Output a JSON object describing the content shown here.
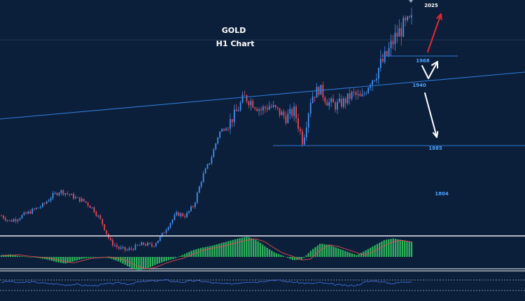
{
  "colors": {
    "background": "#0c1f3a",
    "candle_up": "#3f8ff0",
    "candle_down": "#e5464f",
    "level_line": "#2e78d6",
    "level_label": "#4aa3ff",
    "macd_histogram": "#2db35c",
    "macd_signal": "#e5464f",
    "rsi_line": "#3a6fd8",
    "arrow_bull": "#e5262f",
    "arrow_bear": "#ffffff",
    "separator": "#c9cfd8"
  },
  "chart_data": {
    "type": "candlestick",
    "title": "GOLD",
    "subtitle": "H1 Chart",
    "levels": [
      {
        "label": "2025",
        "value": 2025,
        "kind": "target"
      },
      {
        "label": "1968",
        "value": 1968,
        "kind": "support"
      },
      {
        "label": "1940",
        "value": 1940,
        "kind": "trendline"
      },
      {
        "label": "1885",
        "value": 1885,
        "kind": "support"
      },
      {
        "label": "1804",
        "value": 1804,
        "kind": "target"
      }
    ],
    "close_path": [
      1820,
      1815,
      1818,
      1822,
      1826,
      1830,
      1838,
      1843,
      1840,
      1836,
      1833,
      1826,
      1814,
      1796,
      1790,
      1788,
      1791,
      1794,
      1792,
      1800,
      1812,
      1822,
      1820,
      1830,
      1856,
      1872,
      1897,
      1904,
      1915,
      1930,
      1925,
      1918,
      1922,
      1917,
      1911,
      1917,
      1889,
      1930,
      1938,
      1925,
      1922,
      1926,
      1933,
      1928,
      1944,
      1956,
      1968,
      1985,
      1995,
      2000
    ],
    "indicators": [
      {
        "name": "MACD",
        "histogram": [
          2,
          3,
          1,
          0,
          -1,
          -3,
          -6,
          -8,
          -5,
          -2,
          -1,
          0,
          -2,
          -6,
          -12,
          -16,
          -14,
          -9,
          -5,
          -2,
          3,
          8,
          11,
          13,
          16,
          19,
          22,
          24,
          20,
          12,
          5,
          1,
          -4,
          -3,
          8,
          16,
          14,
          10,
          6,
          2,
          8,
          14,
          20,
          22,
          20,
          18
        ]
      },
      {
        "name": "RSI",
        "values": [
          55,
          58,
          52,
          56,
          54,
          50,
          48,
          45,
          47,
          44,
          42,
          46,
          50,
          52,
          48,
          55,
          58,
          60,
          62,
          57,
          55,
          60,
          58,
          53,
          50,
          48,
          52,
          57,
          55,
          60,
          63,
          58,
          55,
          52,
          50,
          53,
          48,
          45,
          42,
          44,
          56,
          60,
          54,
          50,
          55,
          58
        ]
      }
    ]
  }
}
